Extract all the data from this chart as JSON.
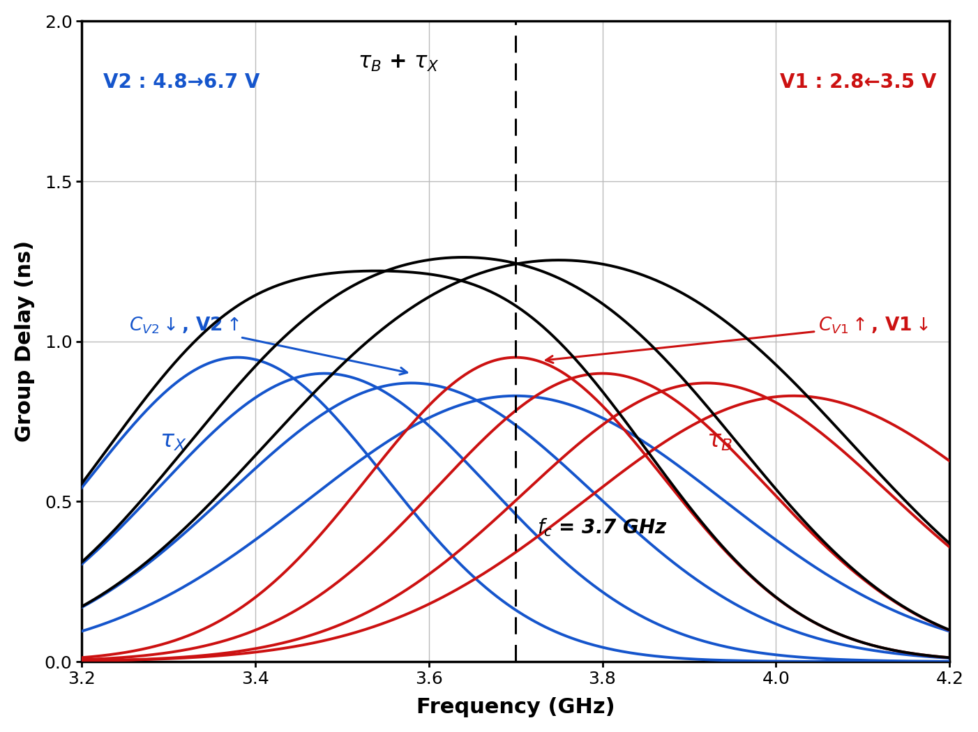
{
  "xlim": [
    3.2,
    4.2
  ],
  "ylim": [
    0,
    2.0
  ],
  "xlabel": "Frequency (GHz)",
  "ylabel": "Group Delay (ns)",
  "fc": 3.7,
  "black_color": "#000000",
  "blue_color": "#1555cc",
  "red_color": "#cc1111",
  "linewidth": 2.8,
  "background_color": "#ffffff",
  "grid_color": "#bbbbbb",
  "blue_curves": [
    {
      "peak_x": 3.38,
      "peak_y": 0.95,
      "sigma": 0.17
    },
    {
      "peak_x": 3.48,
      "peak_y": 0.9,
      "sigma": 0.19
    },
    {
      "peak_x": 3.58,
      "peak_y": 0.87,
      "sigma": 0.21
    },
    {
      "peak_x": 3.7,
      "peak_y": 0.83,
      "sigma": 0.24
    }
  ],
  "red_curves": [
    {
      "peak_x": 3.7,
      "peak_y": 0.95,
      "sigma": 0.17
    },
    {
      "peak_x": 3.8,
      "peak_y": 0.9,
      "sigma": 0.19
    },
    {
      "peak_x": 3.92,
      "peak_y": 0.87,
      "sigma": 0.21
    },
    {
      "peak_x": 4.02,
      "peak_y": 0.83,
      "sigma": 0.24
    }
  ],
  "text_tau_bx": "$\\tau_B$ + $\\tau_X$",
  "text_v2": "V2 : 4.8→6.7 V",
  "text_v1": "V1 : 2.8←3.5 V",
  "text_cv2": "$C_{V2}$$\\downarrow$, V2$\\uparrow$",
  "text_cv1": "$C_{V1}$$\\uparrow$, V1$\\downarrow$",
  "text_taux": "$\\tau_X$",
  "text_taub": "$\\tau_B$",
  "text_fc": "$f_c$ = 3.7 GHz"
}
